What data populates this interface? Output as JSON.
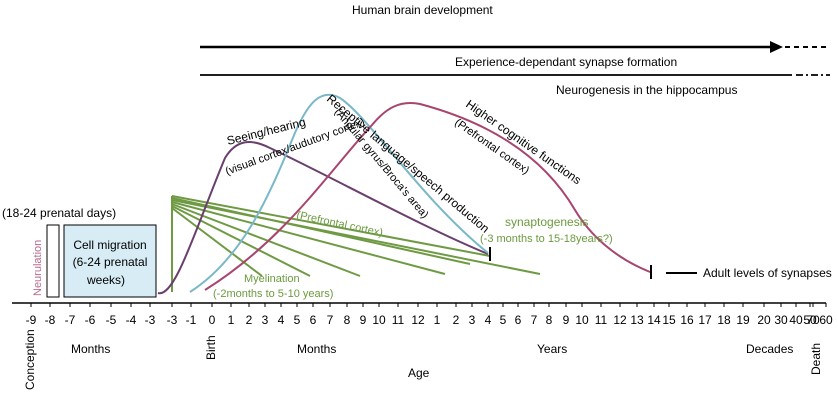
{
  "title": "Human brain development",
  "bars": {
    "synapse_formation": "Experience-dependant synapse formation",
    "neurogenesis": "Neurogenesis in the hippocampus"
  },
  "prenatal": {
    "neurulation_days": "(18-24 prenatal days)",
    "neurulation": "Neurulation",
    "cell_migration_lines": [
      "Cell migration",
      "(6-24 prenatal",
      "weeks)"
    ]
  },
  "curves": {
    "seeing_hearing": "Seeing/hearing",
    "visual_cortex": "(visual cortex/audutory cortex)",
    "receptive_language": "Receptive language/speech production",
    "angular_gyrus": "(Angular gyrus/Broca's area)",
    "higher_cognitive": "Higher cognitive functions",
    "prefrontal_paren": "(Prefrontal cortex)"
  },
  "green": {
    "prefrontal": "(Prefrontal cortex)",
    "synaptogenesis": "synaptogenesis",
    "synaptogenesis_range": "(-3 months to 15-18years?)",
    "myelination": "Myelination",
    "myelination_range": "(-2months to 5-10 years)"
  },
  "adult_levels": "Adult levels of synapses",
  "axis": {
    "ticks": [
      "-9",
      "-8",
      "-7",
      "-6",
      "-5",
      "-4",
      "-3",
      "-3",
      "-1",
      "0",
      "1",
      "2",
      "3",
      "4",
      "5",
      "6",
      "7",
      "8",
      "9",
      "10",
      "11",
      "12",
      "1",
      "2",
      "3",
      "4",
      "5",
      "6",
      "7",
      "8",
      "9",
      "10",
      "11",
      "12",
      "13",
      "14",
      "15",
      "16",
      "17",
      "18",
      "19",
      "20",
      "30",
      "40",
      "50",
      "60",
      "70"
    ],
    "conception": "Conception",
    "birth": "Birth",
    "death": "Death",
    "months1": "Months",
    "months2": "Months",
    "years": "Years",
    "decades": "Decades",
    "age": "Age"
  },
  "colors": {
    "purple": "#6a3f6f",
    "teal": "#7ab8c8",
    "magenta": "#a8456e",
    "green": "#6f9a44",
    "green_text": "#6b9b3f",
    "box_fill": "#d7ecf4",
    "pink_text": "#b56a8c"
  }
}
